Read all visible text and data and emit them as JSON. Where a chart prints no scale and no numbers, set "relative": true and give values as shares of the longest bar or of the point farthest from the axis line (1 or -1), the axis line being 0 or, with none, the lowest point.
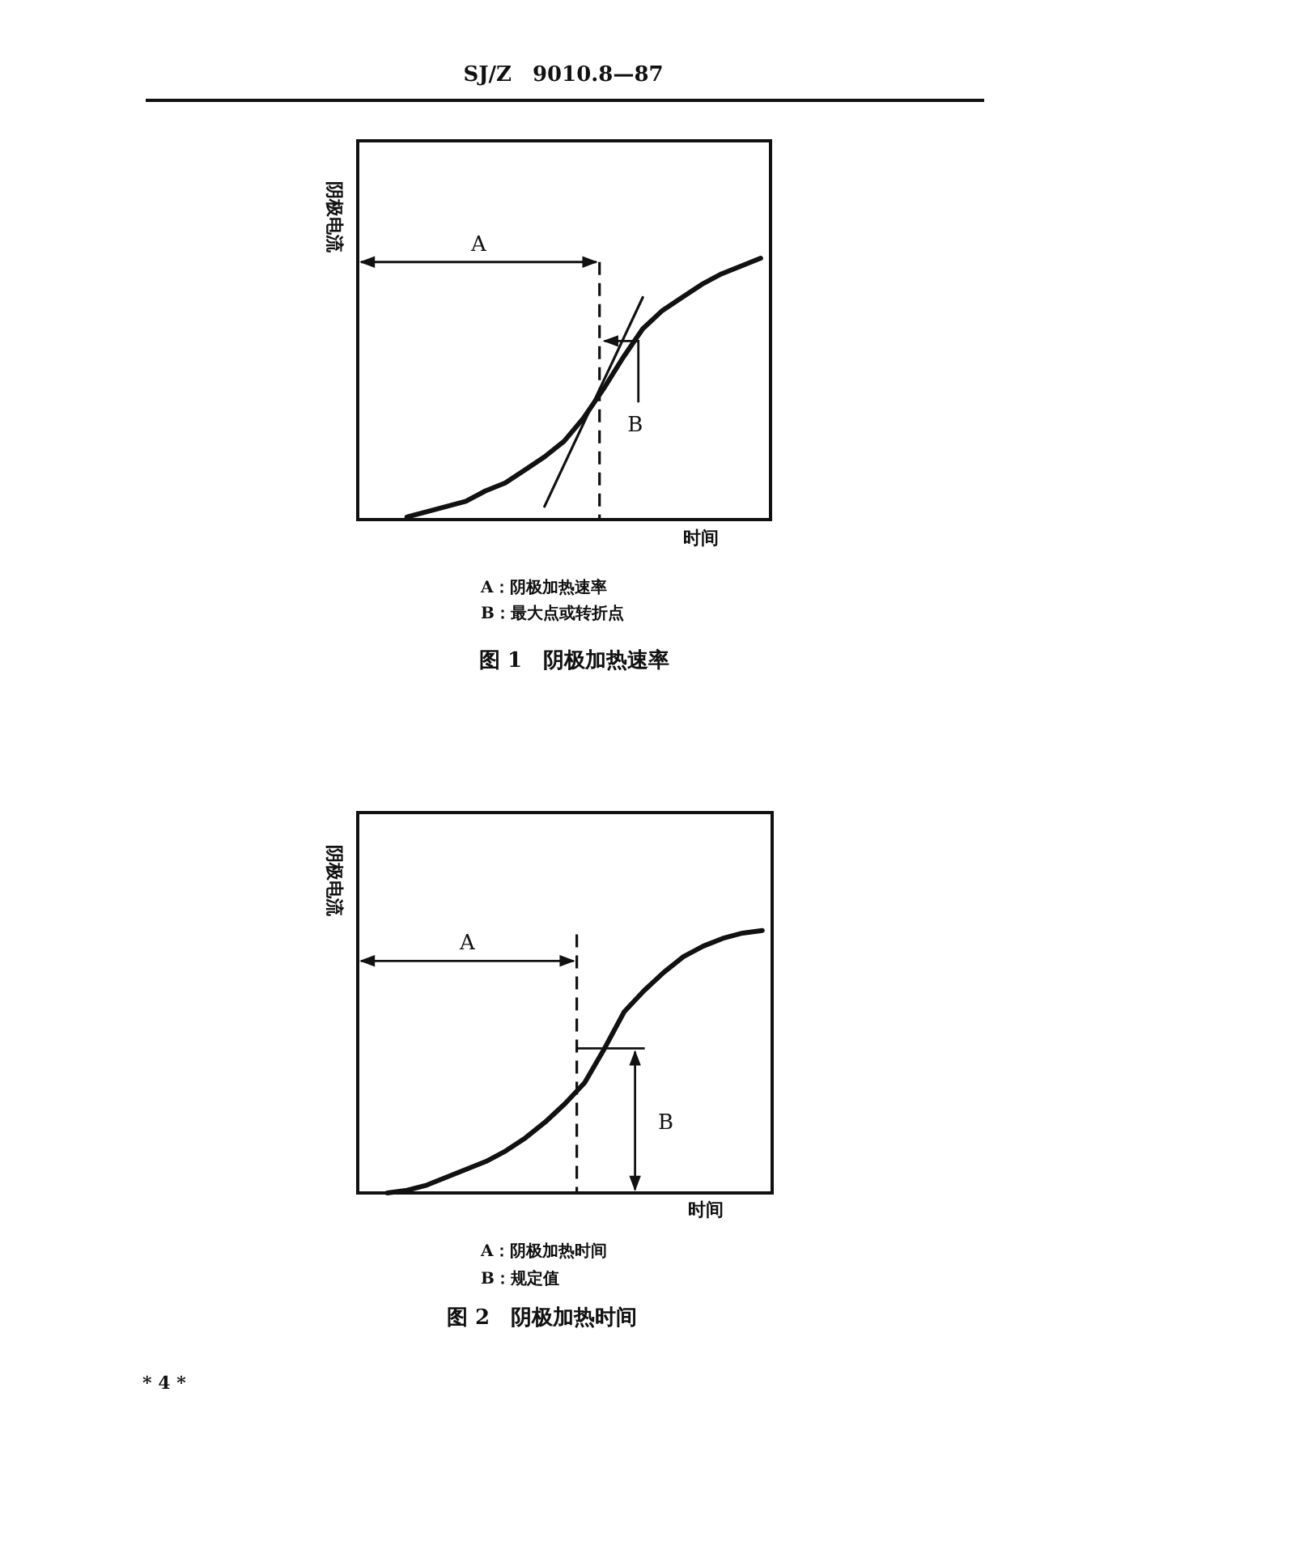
{
  "chart_data": [
    {
      "type": "line",
      "relative": true,
      "title": "图 1　阴极加热速率",
      "xlabel": "时间",
      "ylabel": "阴极电流",
      "categories": [
        null,
        null,
        null,
        null,
        null,
        null,
        null,
        null,
        null,
        null,
        null,
        null,
        null,
        null,
        null,
        null,
        null,
        null,
        null,
        null,
        null
      ],
      "series": [
        {
          "color": "#111111",
          "values": [
            null,
            null,
            0.01,
            0.03,
            0.05,
            0.07,
            0.11,
            0.14,
            0.19,
            0.24,
            0.3,
            0.39,
            0.5,
            0.62,
            0.73,
            0.8,
            0.85,
            0.9,
            0.94,
            0.97,
            1.0
          ]
        },
        {
          "type": "line",
          "color": "#111111",
          "values": [
            null,
            null,
            null,
            null,
            null,
            null,
            null,
            null,
            null,
            0.05,
            0.21,
            0.37,
            0.53,
            0.69,
            0.85,
            null,
            null,
            null,
            null,
            null,
            null
          ]
        }
      ],
      "annotations": [
        "SJ/Z　9010.8—87",
        "A",
        "B",
        "A：阴极加热速率",
        "B：最大点或转折点"
      ]
    },
    {
      "type": "line",
      "relative": true,
      "title": "图 2　阴极加热时间",
      "xlabel": "时间",
      "ylabel": "阴极电流",
      "categories": [
        null,
        null,
        null,
        null,
        null,
        null,
        null,
        null,
        null,
        null,
        null,
        null,
        null,
        null,
        null,
        null,
        null,
        null,
        null,
        null,
        null
      ],
      "series": [
        {
          "color": "#111111",
          "values": [
            null,
            0.0,
            0.01,
            0.03,
            0.06,
            0.09,
            0.12,
            0.16,
            0.21,
            0.27,
            0.34,
            0.42,
            0.55,
            0.69,
            0.77,
            0.84,
            0.9,
            0.94,
            0.97,
            0.99,
            1.0
          ]
        }
      ],
      "annotations": [
        "A",
        "B",
        "A：阴极加热时间",
        "B：规定值",
        "* 4 *"
      ]
    }
  ]
}
